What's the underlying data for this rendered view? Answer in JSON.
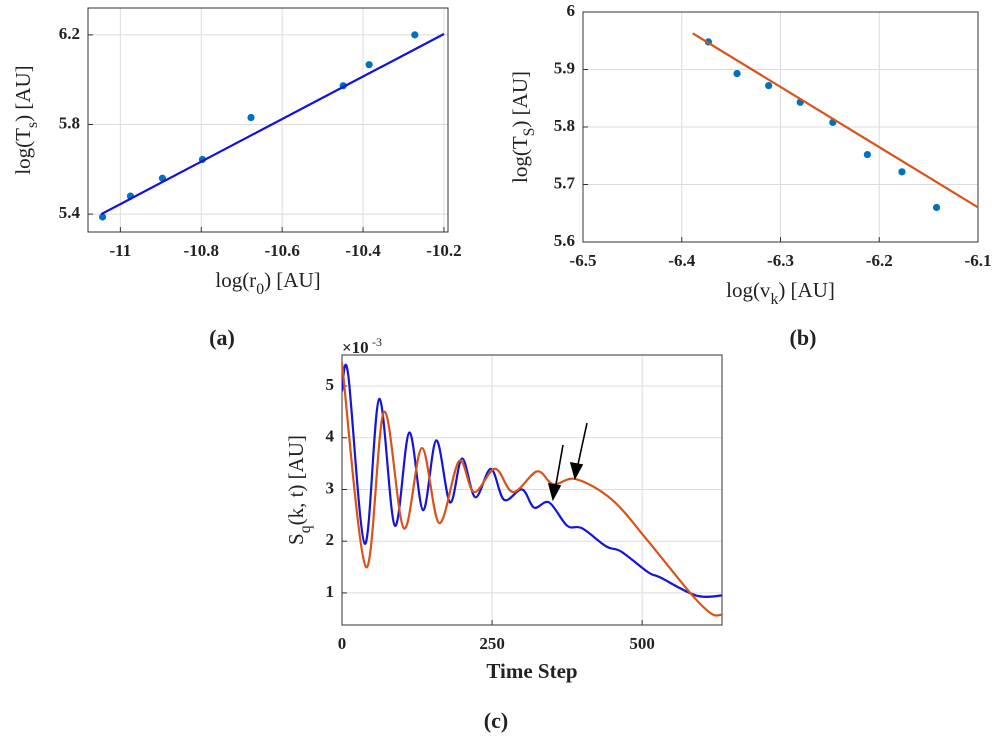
{
  "chart_data": [
    {
      "type": "scatter",
      "label": "(a)",
      "xlabel": "log(r_0) [AU]",
      "ylabel": "log(T_s) [AU]",
      "xlim": [
        -11.08,
        -10.19
      ],
      "xticks": [
        -11,
        -10.8,
        -10.6,
        -10.4,
        -10.2
      ],
      "ylim": [
        5.32,
        6.32
      ],
      "yticks": [
        5.4,
        5.8,
        6.2
      ],
      "grid": true,
      "series": [
        {
          "style": "markers",
          "color": "#0072bd",
          "x": [
            -11.044,
            -10.975,
            -10.896,
            -10.797,
            -10.677,
            -10.449,
            -10.385,
            -10.272
          ],
          "values": [
            5.387,
            5.48,
            5.56,
            5.644,
            5.831,
            5.973,
            6.067,
            6.2
          ]
        },
        {
          "style": "line",
          "color": "#1010e0",
          "x": [
            -11.047,
            -10.2
          ],
          "values": [
            5.4,
            6.204
          ]
        }
      ]
    },
    {
      "type": "scatter",
      "label": "(b)",
      "xlabel": "log(v_k) [AU]",
      "ylabel": "log(T_S) [AU]",
      "xlim": [
        -6.5,
        -6.1
      ],
      "xticks": [
        -6.5,
        -6.4,
        -6.3,
        -6.2,
        -6.1
      ],
      "ylim": [
        5.6,
        6
      ],
      "yticks": [
        5.6,
        5.7,
        5.8,
        5.9,
        6
      ],
      "grid": true,
      "series": [
        {
          "style": "markers",
          "color": "#0072bd",
          "x": [
            -6.373,
            -6.344,
            -6.312,
            -6.28,
            -6.247,
            -6.212,
            -6.177,
            -6.142
          ],
          "values": [
            5.948,
            5.893,
            5.872,
            5.843,
            5.808,
            5.752,
            5.722,
            5.66
          ]
        },
        {
          "style": "line",
          "color": "#d95319",
          "x": [
            -6.389,
            -6.096
          ],
          "values": [
            5.963,
            5.656
          ]
        }
      ]
    },
    {
      "type": "line",
      "label": "(c)",
      "xlabel": "Time Step",
      "ylabel": "S_q(k, t) [AU]",
      "y_multiplier": "×10",
      "y_multiplier_exponent": "-3",
      "xlim": [
        0,
        633
      ],
      "xticks": [
        0,
        250,
        500
      ],
      "ylim": [
        0.38,
        5.6
      ],
      "yticks": [
        1,
        2,
        3,
        4,
        5
      ],
      "grid": true,
      "series": [
        {
          "style": "line",
          "color": "#1515d8",
          "x": [
            0,
            10,
            38,
            62,
            88,
            112,
            135,
            157,
            180,
            200,
            222,
            248,
            270,
            300,
            320,
            345,
            375,
            400,
            440,
            465,
            510,
            530,
            590,
            633
          ],
          "values": [
            4.9,
            5.25,
            1.95,
            4.75,
            2.3,
            4.1,
            2.6,
            3.95,
            2.75,
            3.6,
            2.85,
            3.4,
            2.8,
            3.0,
            2.65,
            2.75,
            2.3,
            2.25,
            1.9,
            1.8,
            1.4,
            1.3,
            0.95,
            0.95
          ]
        },
        {
          "style": "line",
          "color": "#d95319",
          "x": [
            0,
            40,
            70,
            103,
            133,
            162,
            195,
            220,
            255,
            285,
            325,
            352,
            390,
            450,
            510,
            580,
            615,
            633
          ],
          "values": [
            5.45,
            1.5,
            4.5,
            2.25,
            3.8,
            2.35,
            3.55,
            2.95,
            3.4,
            2.95,
            3.35,
            3.1,
            3.2,
            2.8,
            2.0,
            1.0,
            0.6,
            0.58
          ]
        }
      ]
    }
  ]
}
